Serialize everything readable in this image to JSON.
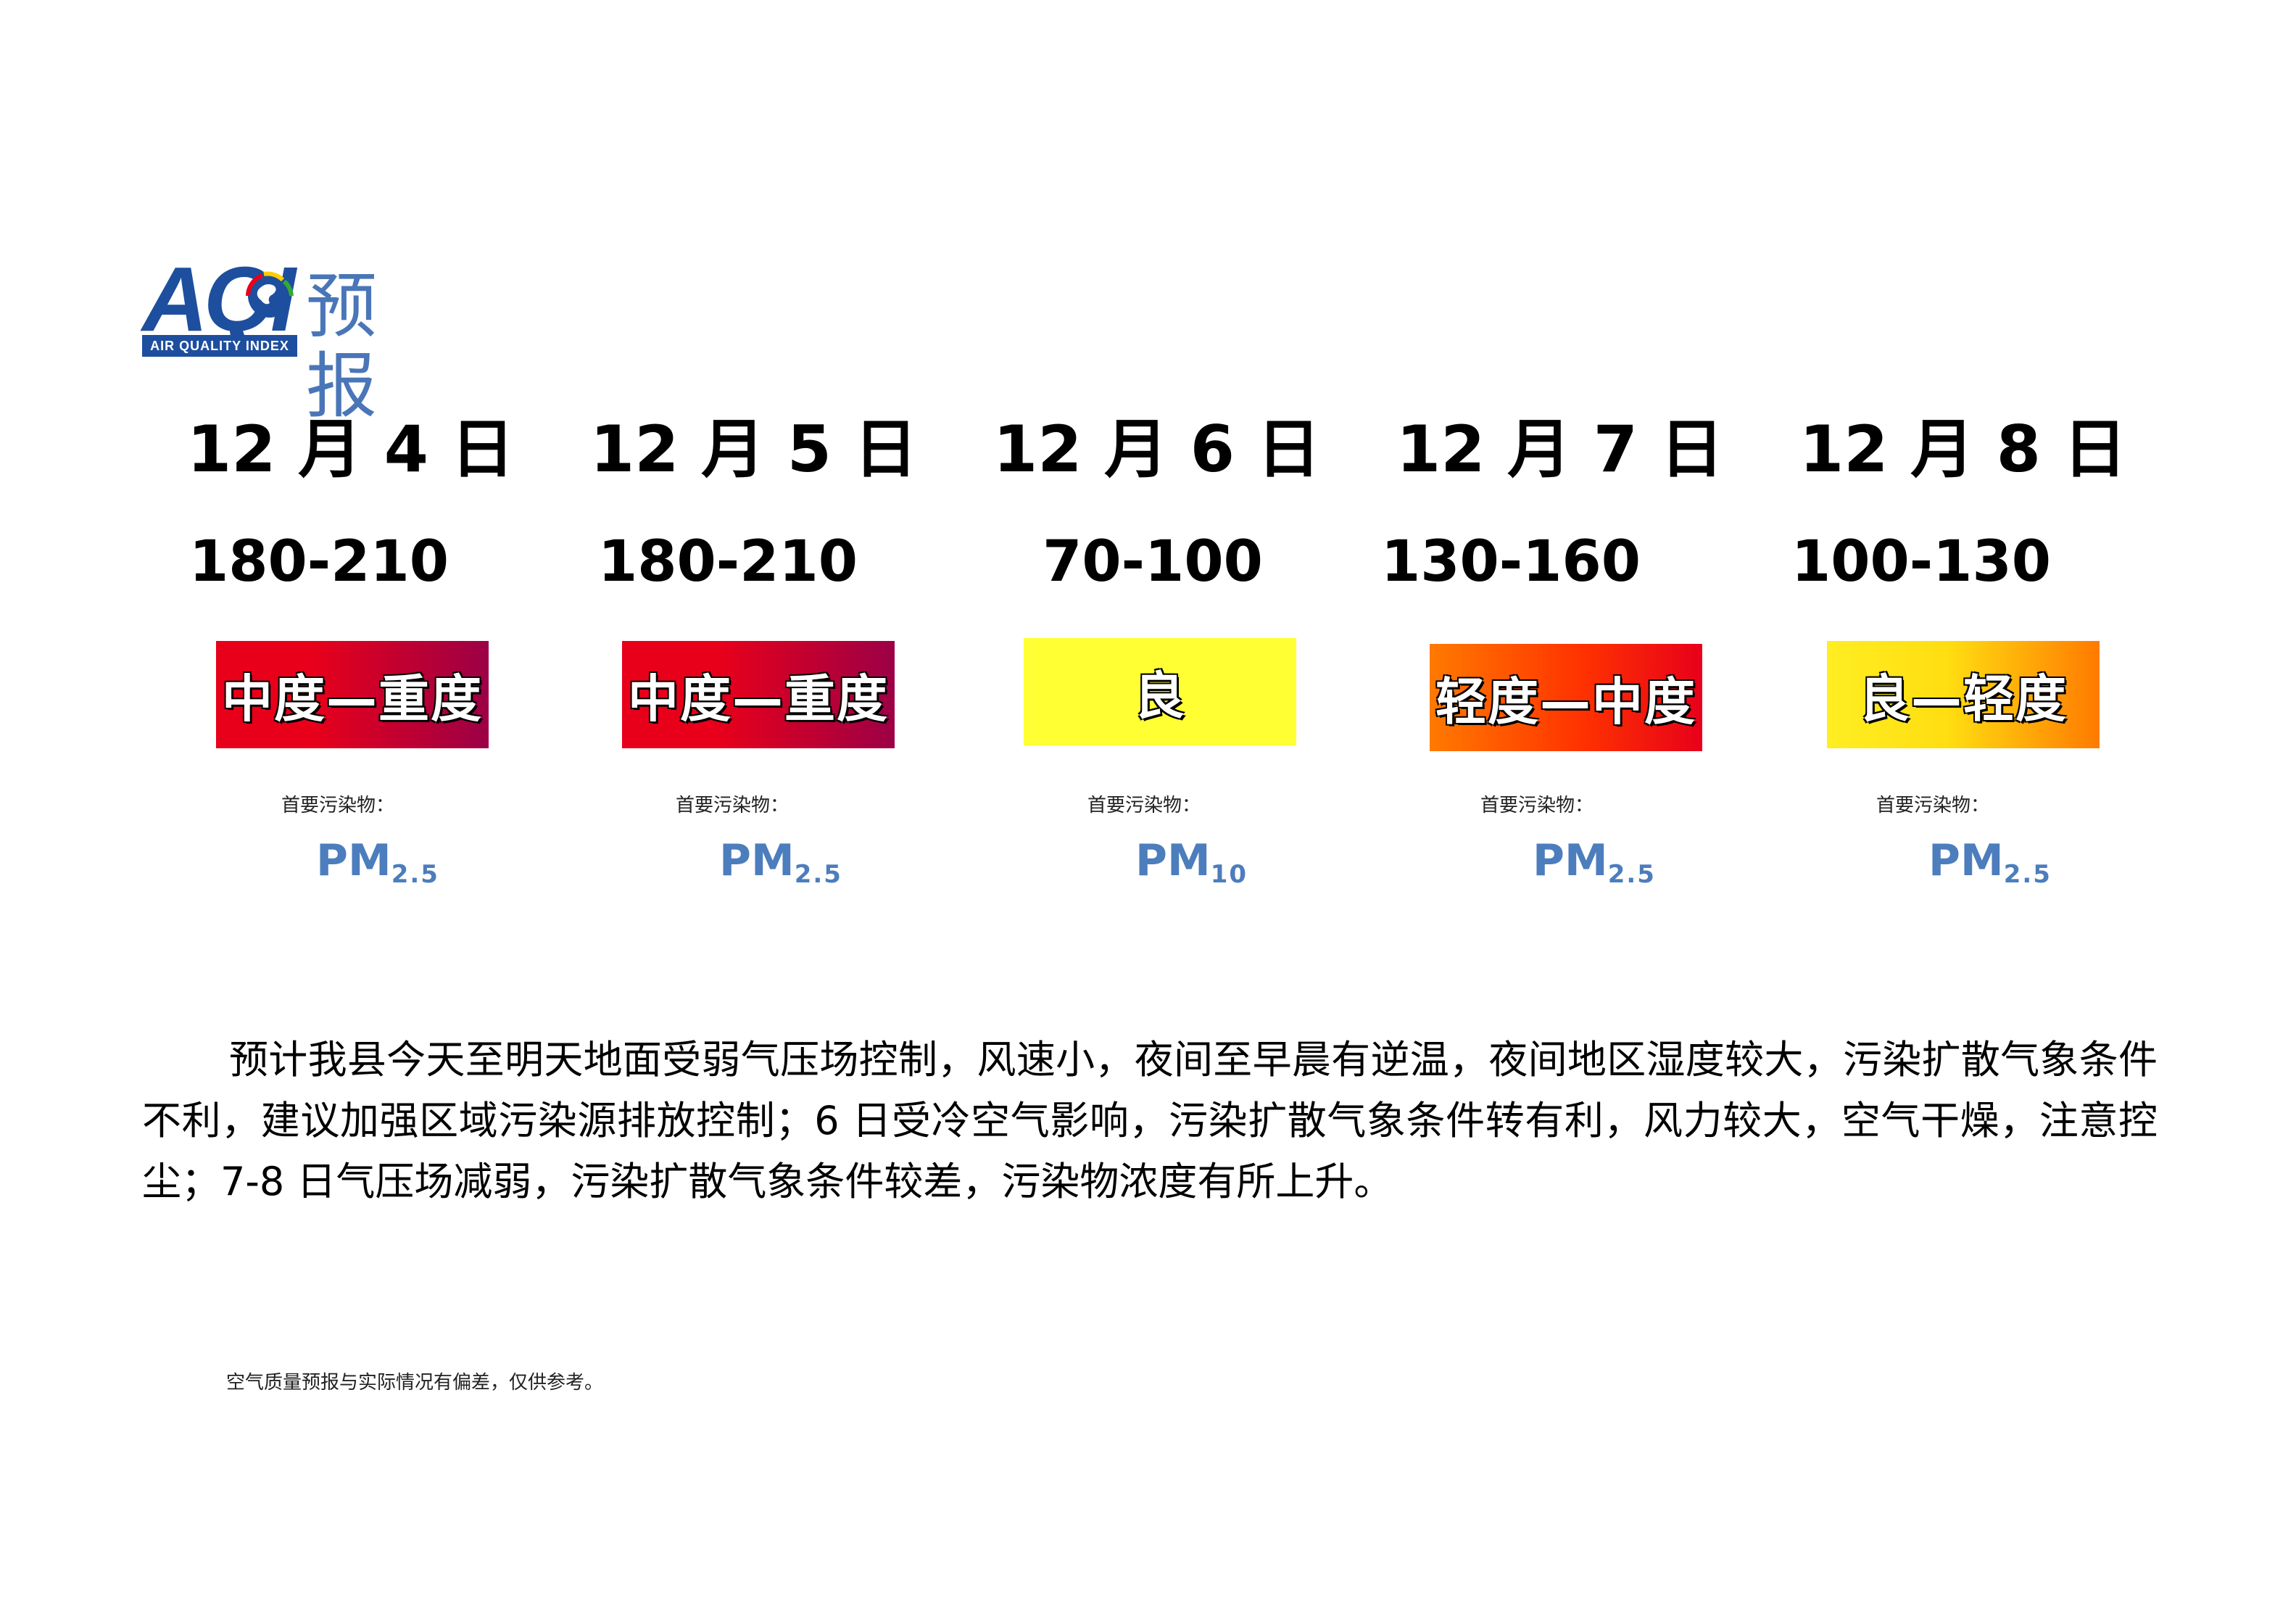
{
  "logo": {
    "letters": "AQI",
    "subtitle": "AIR QUALITY INDEX",
    "title": "预报"
  },
  "forecast": [
    {
      "date": "12 月 4 日",
      "aqi_range": "180-210",
      "level": "中度—重度",
      "level_colors": [
        "#e8001a",
        "#9c0046"
      ],
      "pollutant_label": "首要污染物：",
      "pollutant": "PM",
      "pollutant_sub": "2.5"
    },
    {
      "date": "12 月 5 日",
      "aqi_range": "180-210",
      "level": "中度—重度",
      "level_colors": [
        "#e8001a",
        "#9c0046"
      ],
      "pollutant_label": "首要污染物：",
      "pollutant": "PM",
      "pollutant_sub": "2.5"
    },
    {
      "date": "12 月 6 日",
      "aqi_range": "70-100",
      "level": "良",
      "level_colors": [
        "#ffff33",
        "#ffff33"
      ],
      "pollutant_label": "首要污染物：",
      "pollutant": "PM",
      "pollutant_sub": "10"
    },
    {
      "date": "12 月 7 日",
      "aqi_range": "130-160",
      "level": "轻度—中度",
      "level_colors": [
        "#ff7a00",
        "#e8001a"
      ],
      "pollutant_label": "首要污染物：",
      "pollutant": "PM",
      "pollutant_sub": "2.5"
    },
    {
      "date": "12 月 8 日",
      "aqi_range": "100-130",
      "level": "良—轻度",
      "level_colors": [
        "#ffee22",
        "#ff7a00"
      ],
      "pollutant_label": "首要污染物：",
      "pollutant": "PM",
      "pollutant_sub": "2.5"
    }
  ],
  "description": "预计我县今天至明天地面受弱气压场控制，风速小，夜间至早晨有逆温，夜间地区湿度较大，污染扩散气象条件不利，建议加强区域污染源排放控制；6 日受冷空气影响，污染扩散气象条件转有利，风力较大，空气干燥，注意控尘；7-8 日气压场减弱，污染扩散气象条件较差，污染物浓度有所上升。",
  "disclaimer": "空气质量预报与实际情况有偏差，仅供参考。"
}
